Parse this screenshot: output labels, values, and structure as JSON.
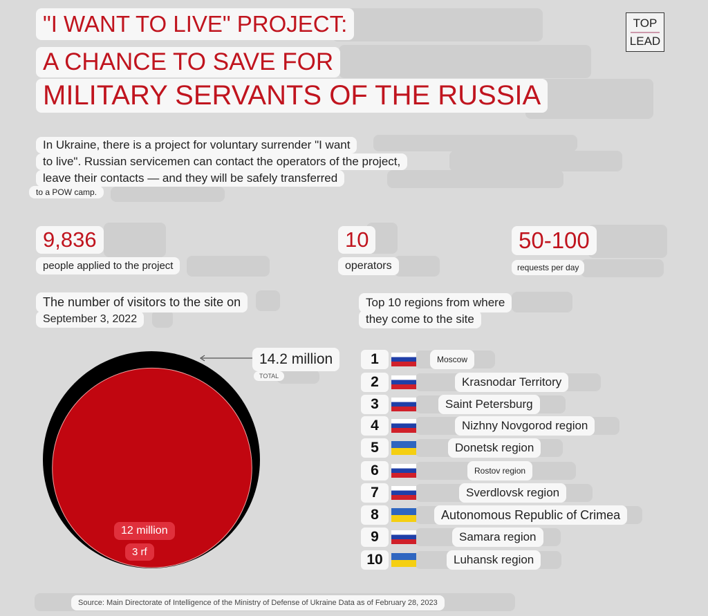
{
  "logo": {
    "line1": "TOP",
    "line2": "LEAD"
  },
  "title": {
    "line1": "\"I WANT TO LIVE\" PROJECT:",
    "line2": "A CHANCE TO SAVE FOR",
    "line3": "MILITARY SERVANTS OF THE RUSSIA"
  },
  "intro": {
    "line1": "In Ukraine, there is a project for voluntary surrender \"I want",
    "line2": "to live\". Russian servicemen can contact the operators of the project,",
    "line3": "leave their contacts — and they will be safely transferred",
    "line4": "to a POW camp."
  },
  "stats": [
    {
      "value": "9,836",
      "label": "people applied to the project"
    },
    {
      "value": "10",
      "label": "operators"
    },
    {
      "value": "50-100",
      "label": "requests per day"
    }
  ],
  "visitors": {
    "heading_line1": "The number of visitors to the site on",
    "heading_line2": "September 3, 2022",
    "total_value": "14.2 million",
    "total_label": "TOTAL",
    "rf_value": "12 million",
    "rf_label": "3 rf",
    "colors": {
      "total": "#000000",
      "rf": "#c10610"
    }
  },
  "chart_data": {
    "type": "area-circles",
    "title": "The number of visitors to the site on September 3, 2022",
    "series": [
      {
        "name": "TOTAL",
        "value": 14.2,
        "unit": "million"
      },
      {
        "name": "3 rf",
        "value": 12,
        "unit": "million"
      }
    ]
  },
  "regions": {
    "heading_line1": "Top 10 regions from where",
    "heading_line2": "they come to the site",
    "items": [
      {
        "rank": "1",
        "flag": "ru",
        "name": "Moscow"
      },
      {
        "rank": "2",
        "flag": "ru",
        "name": "Krasnodar Territory"
      },
      {
        "rank": "3",
        "flag": "ru",
        "name": "Saint Petersburg"
      },
      {
        "rank": "4",
        "flag": "ru",
        "name": "Nizhny Novgorod region"
      },
      {
        "rank": "5",
        "flag": "ua",
        "name": "Donetsk region"
      },
      {
        "rank": "6",
        "flag": "ru",
        "name": "Rostov region"
      },
      {
        "rank": "7",
        "flag": "ru",
        "name": "Sverdlovsk region"
      },
      {
        "rank": "8",
        "flag": "ua",
        "name": "Autonomous Republic of Crimea"
      },
      {
        "rank": "9",
        "flag": "ru",
        "name": "Samara region"
      },
      {
        "rank": "10",
        "flag": "ua",
        "name": "Luhansk region"
      }
    ]
  },
  "source": "Source: Main Directorate of Intelligence of the Ministry of Defense of Ukraine Data as of February 28, 2023"
}
